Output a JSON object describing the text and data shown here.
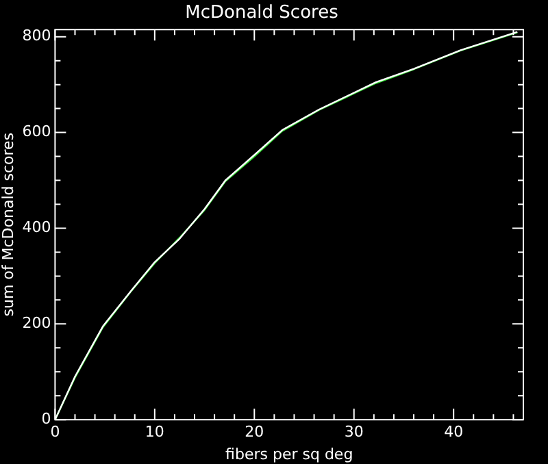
{
  "chart_data": {
    "type": "line",
    "title": "McDonald Scores",
    "xlabel": "fibers per sq deg",
    "ylabel": "sum of McDonald scores",
    "xlim": [
      0,
      47
    ],
    "ylim": [
      0,
      815
    ],
    "xticks": [
      0,
      {
        "value": 2,
        "label": null
      },
      {
        "value": 4,
        "label": null
      },
      {
        "value": 6,
        "label": null
      },
      {
        "value": 8,
        "label": null
      },
      10,
      {
        "value": 12,
        "label": null
      },
      {
        "value": 14,
        "label": null
      },
      {
        "value": 16,
        "label": null
      },
      {
        "value": 18,
        "label": null
      },
      20,
      {
        "value": 22,
        "label": null
      },
      {
        "value": 24,
        "label": null
      },
      {
        "value": 26,
        "label": null
      },
      {
        "value": 28,
        "label": null
      },
      30,
      {
        "value": 32,
        "label": null
      },
      {
        "value": 34,
        "label": null
      },
      {
        "value": 36,
        "label": null
      },
      {
        "value": 38,
        "label": null
      },
      40,
      {
        "value": 42,
        "label": null
      },
      {
        "value": 44,
        "label": null
      },
      {
        "value": 46,
        "label": null
      }
    ],
    "yticks": [
      0,
      {
        "value": 50,
        "label": null
      },
      {
        "value": 100,
        "label": null
      },
      {
        "value": 150,
        "label": null
      },
      200,
      {
        "value": 250,
        "label": null
      },
      {
        "value": 300,
        "label": null
      },
      {
        "value": 350,
        "label": null
      },
      400,
      {
        "value": 450,
        "label": null
      },
      {
        "value": 500,
        "label": null
      },
      {
        "value": 550,
        "label": null
      },
      600,
      {
        "value": 650,
        "label": null
      },
      {
        "value": 700,
        "label": null
      },
      {
        "value": 750,
        "label": null
      },
      800
    ],
    "grid": false,
    "legend": false,
    "marker": "none",
    "line_style": "solid",
    "series": [
      {
        "color": "#ffffff",
        "x": [
          0,
          2,
          4.8,
          7.7,
          10,
          12.5,
          15,
          17.1,
          20,
          22.8,
          26.5,
          32.2,
          36,
          40.7,
          46.4
        ],
        "values": [
          0,
          90,
          195,
          271,
          329,
          378,
          440,
          500,
          553,
          605,
          648,
          705,
          733,
          772,
          810
        ]
      },
      {
        "color": "#33dd33",
        "x": [
          0,
          2,
          4.8,
          7.7,
          10,
          12.5,
          15,
          17.1,
          20,
          22.8,
          26.5,
          32.2,
          36,
          40.7,
          46.4
        ],
        "values": [
          0,
          88,
          193,
          270,
          327,
          380,
          438,
          498,
          550,
          603,
          647,
          703,
          732,
          771,
          809
        ]
      }
    ]
  }
}
